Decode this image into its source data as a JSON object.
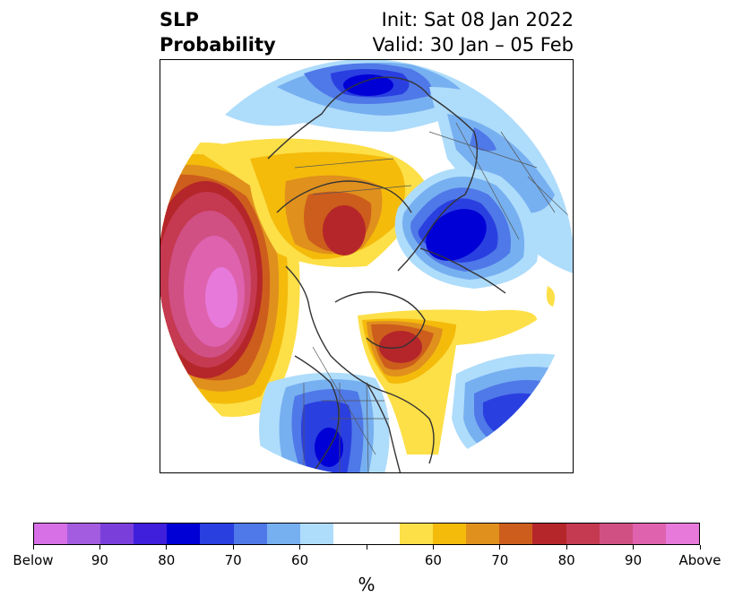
{
  "title": {
    "variable": "SLP",
    "product": "Probability",
    "init": "Init: Sat 08 Jan 2022",
    "valid": "Valid: 30 Jan – 05 Feb"
  },
  "colorbar": {
    "unit": "%",
    "below_colors": [
      "#d76fe6",
      "#a35ce0",
      "#7a3fdb",
      "#3f1fdc",
      "#0000d6",
      "#2a3fe0",
      "#4f78e8",
      "#77b0f0",
      "#aedcfb"
    ],
    "neutral_color": "#ffffff",
    "above_colors": [
      "#fddf47",
      "#f4bb0b",
      "#e0901d",
      "#cd5d1c",
      "#b5262a",
      "#c53951",
      "#d05084",
      "#de62ad",
      "#e779da"
    ],
    "tick_labels": [
      "Below",
      "90",
      "80",
      "70",
      "60",
      "",
      "60",
      "70",
      "80",
      "90",
      "Above"
    ]
  },
  "map": {
    "projection": "north-polar-stereographic",
    "features": [
      {
        "id": "north-pacific-above",
        "category": "above",
        "peak_percent": 90
      },
      {
        "id": "siberia-above",
        "category": "above",
        "peak_percent": 80
      },
      {
        "id": "eastern-canada-above",
        "category": "above",
        "peak_percent": 80
      },
      {
        "id": "scandinavia-below",
        "category": "below",
        "peak_percent": 80
      },
      {
        "id": "north-atlantic-below",
        "category": "below",
        "peak_percent": 80
      },
      {
        "id": "western-us-below",
        "category": "below",
        "peak_percent": 80
      },
      {
        "id": "europe-below",
        "category": "below",
        "peak_percent": 70
      }
    ]
  }
}
